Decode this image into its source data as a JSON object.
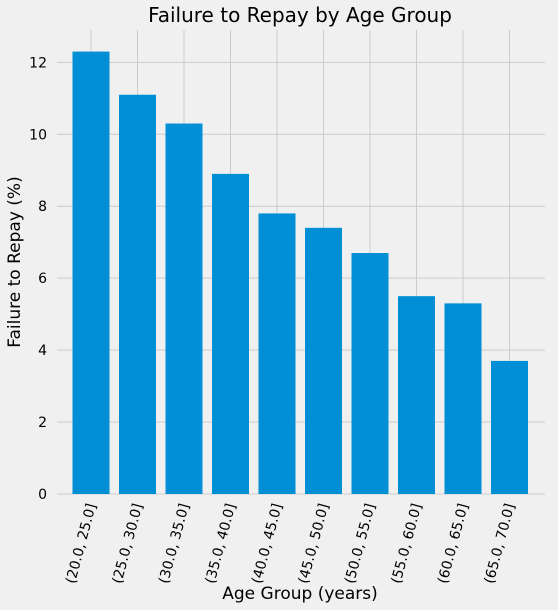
{
  "chart_data": {
    "type": "bar",
    "title": "Failure to Repay by Age Group",
    "xlabel": "Age Group (years)",
    "ylabel": "Failure to Repay (%)",
    "categories": [
      "(20.0, 25.0]",
      "(25.0, 30.0]",
      "(30.0, 35.0]",
      "(35.0, 40.0]",
      "(40.0, 45.0]",
      "(45.0, 50.0]",
      "(50.0, 55.0]",
      "(55.0, 60.0]",
      "(60.0, 65.0]",
      "(65.0, 70.0]"
    ],
    "values": [
      12.3,
      11.1,
      10.3,
      8.9,
      7.8,
      7.4,
      6.7,
      5.5,
      5.3,
      3.7
    ],
    "yticks": [
      0,
      2,
      4,
      6,
      8,
      10,
      12
    ],
    "ylim": [
      0,
      12.9
    ],
    "grid": true,
    "bar_color": "#008fd5",
    "background_color": "#f0f0f0",
    "grid_color": "#cbcbcb"
  }
}
